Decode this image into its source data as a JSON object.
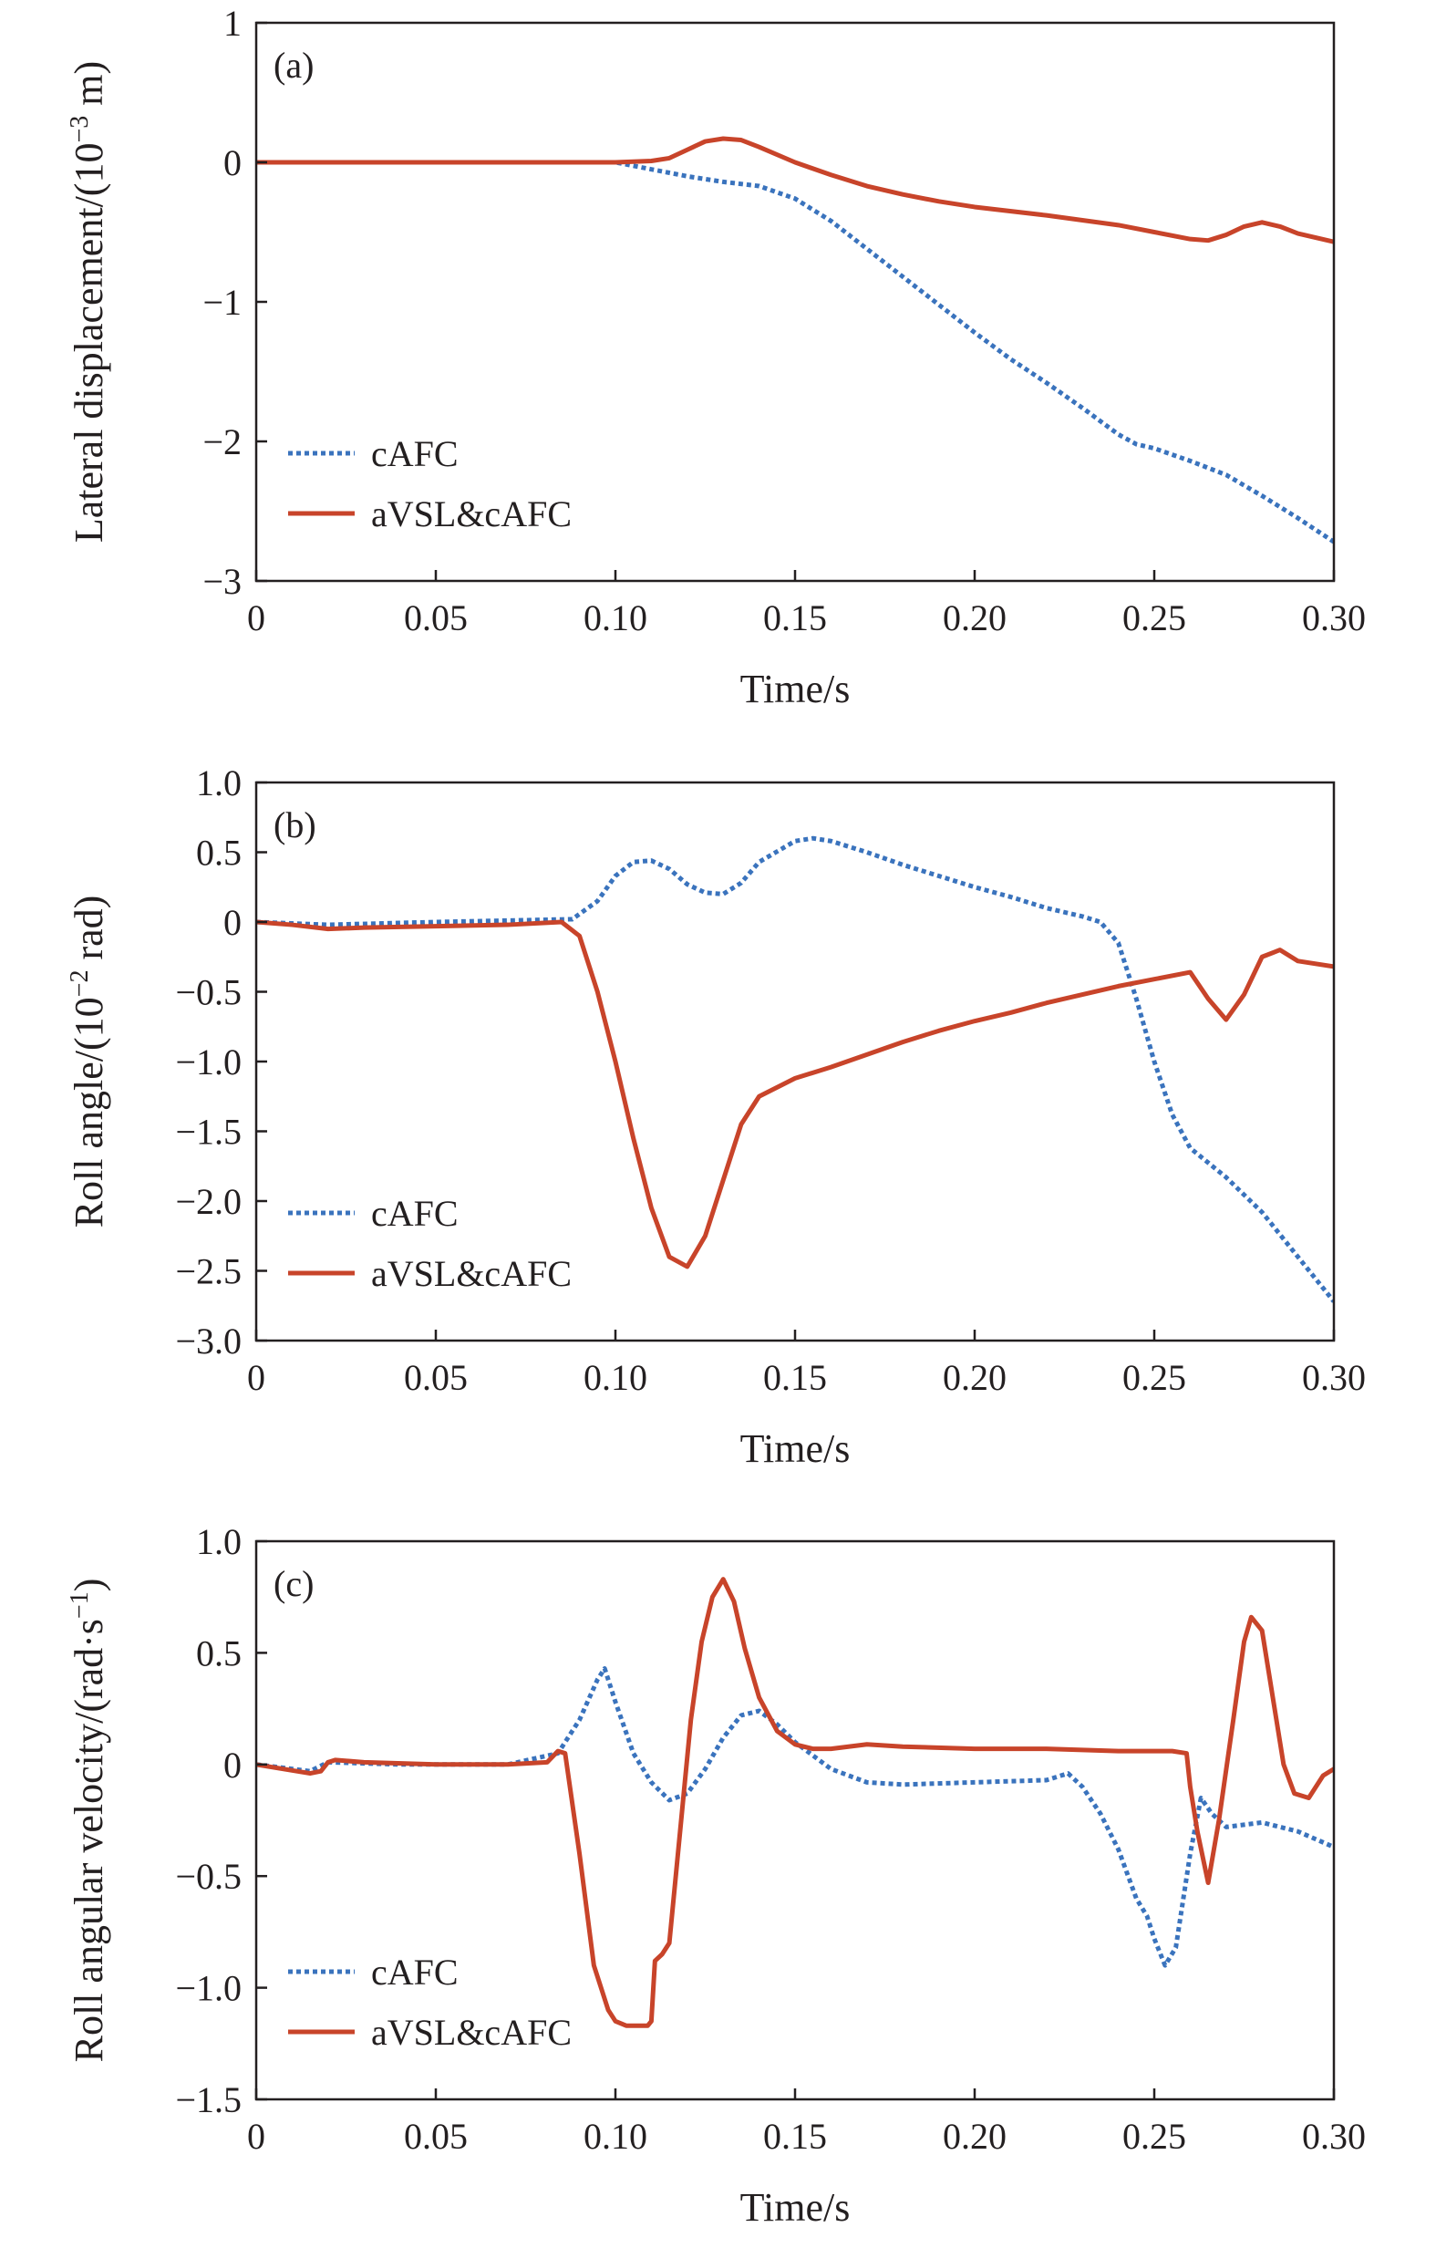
{
  "chart_data": [
    {
      "type": "line",
      "panel_label": "(a)",
      "xlabel": "Time/s",
      "ylabel_main": "Lateral displacement/(10",
      "ylabel_sup": "−3",
      "ylabel_end": " m)",
      "xlim": [
        0,
        0.3
      ],
      "ylim": [
        -3,
        1
      ],
      "xticks": [
        0,
        0.05,
        0.1,
        0.15,
        0.2,
        0.25,
        0.3
      ],
      "xtick_labels": [
        "0",
        "0.05",
        "0.10",
        "0.15",
        "0.20",
        "0.25",
        "0.30"
      ],
      "yticks": [
        -3,
        -2,
        -1,
        0,
        1
      ],
      "ytick_labels": [
        "−3",
        "−2",
        "−1",
        "0",
        "1"
      ],
      "legend_position": "lower-left",
      "series": [
        {
          "name": "cAFC",
          "style": "dotted",
          "color": "#3a73bd",
          "x": [
            0,
            0.05,
            0.1,
            0.11,
            0.12,
            0.13,
            0.14,
            0.15,
            0.16,
            0.17,
            0.18,
            0.19,
            0.2,
            0.21,
            0.22,
            0.23,
            0.24,
            0.245,
            0.25,
            0.26,
            0.27,
            0.28,
            0.29,
            0.3
          ],
          "y": [
            0,
            0,
            0,
            -0.05,
            -0.1,
            -0.14,
            -0.17,
            -0.26,
            -0.42,
            -0.62,
            -0.82,
            -1.02,
            -1.22,
            -1.41,
            -1.58,
            -1.76,
            -1.95,
            -2.02,
            -2.05,
            -2.14,
            -2.24,
            -2.39,
            -2.55,
            -2.72
          ]
        },
        {
          "name": "aVSL&cAFC",
          "style": "solid",
          "color": "#c8442a",
          "x": [
            0,
            0.05,
            0.1,
            0.11,
            0.115,
            0.12,
            0.125,
            0.13,
            0.135,
            0.14,
            0.15,
            0.16,
            0.17,
            0.18,
            0.19,
            0.2,
            0.22,
            0.24,
            0.25,
            0.26,
            0.265,
            0.27,
            0.275,
            0.28,
            0.285,
            0.29,
            0.3
          ],
          "y": [
            0,
            0,
            0,
            0.01,
            0.03,
            0.09,
            0.15,
            0.17,
            0.16,
            0.11,
            0.0,
            -0.09,
            -0.17,
            -0.23,
            -0.28,
            -0.32,
            -0.38,
            -0.45,
            -0.5,
            -0.55,
            -0.56,
            -0.52,
            -0.46,
            -0.43,
            -0.46,
            -0.51,
            -0.57
          ]
        }
      ]
    },
    {
      "type": "line",
      "panel_label": "(b)",
      "xlabel": "Time/s",
      "ylabel_main": "Roll angle/(10",
      "ylabel_sup": "−2",
      "ylabel_end": " rad)",
      "xlim": [
        0,
        0.3
      ],
      "ylim": [
        -3.0,
        1.0
      ],
      "xticks": [
        0,
        0.05,
        0.1,
        0.15,
        0.2,
        0.25,
        0.3
      ],
      "xtick_labels": [
        "0",
        "0.05",
        "0.10",
        "0.15",
        "0.20",
        "0.25",
        "0.30"
      ],
      "yticks": [
        -3.0,
        -2.5,
        -2.0,
        -1.5,
        -1.0,
        -0.5,
        0,
        0.5,
        1.0
      ],
      "ytick_labels": [
        "−3.0",
        "−2.5",
        "−2.0",
        "−1.5",
        "−1.0",
        "−0.5",
        "0",
        "0.5",
        "1.0"
      ],
      "legend_position": "lower-left",
      "series": [
        {
          "name": "cAFC",
          "style": "dotted",
          "color": "#3a73bd",
          "x": [
            0,
            0.02,
            0.05,
            0.088,
            0.095,
            0.1,
            0.105,
            0.11,
            0.115,
            0.12,
            0.125,
            0.13,
            0.135,
            0.14,
            0.15,
            0.155,
            0.16,
            0.17,
            0.18,
            0.19,
            0.2,
            0.21,
            0.22,
            0.23,
            0.235,
            0.24,
            0.245,
            0.25,
            0.255,
            0.26,
            0.27,
            0.28,
            0.29,
            0.3
          ],
          "y": [
            0,
            -0.02,
            0,
            0.02,
            0.15,
            0.33,
            0.43,
            0.44,
            0.38,
            0.27,
            0.21,
            0.2,
            0.28,
            0.43,
            0.58,
            0.6,
            0.58,
            0.5,
            0.41,
            0.33,
            0.25,
            0.18,
            0.1,
            0.04,
            0.0,
            -0.15,
            -0.55,
            -1.0,
            -1.38,
            -1.62,
            -1.83,
            -2.08,
            -2.4,
            -2.72
          ]
        },
        {
          "name": "aVSL&cAFC",
          "style": "solid",
          "color": "#c8442a",
          "x": [
            0,
            0.01,
            0.02,
            0.03,
            0.05,
            0.07,
            0.085,
            0.09,
            0.095,
            0.1,
            0.105,
            0.11,
            0.115,
            0.12,
            0.125,
            0.13,
            0.135,
            0.14,
            0.15,
            0.16,
            0.17,
            0.18,
            0.19,
            0.2,
            0.21,
            0.22,
            0.23,
            0.24,
            0.25,
            0.26,
            0.265,
            0.27,
            0.275,
            0.28,
            0.285,
            0.29,
            0.3
          ],
          "y": [
            0,
            -0.02,
            -0.05,
            -0.04,
            -0.03,
            -0.02,
            0.0,
            -0.1,
            -0.5,
            -1.0,
            -1.55,
            -2.05,
            -2.4,
            -2.47,
            -2.25,
            -1.85,
            -1.45,
            -1.25,
            -1.12,
            -1.04,
            -0.95,
            -0.86,
            -0.78,
            -0.71,
            -0.65,
            -0.58,
            -0.52,
            -0.46,
            -0.41,
            -0.36,
            -0.55,
            -0.7,
            -0.52,
            -0.25,
            -0.2,
            -0.28,
            -0.32
          ]
        }
      ]
    },
    {
      "type": "line",
      "panel_label": "(c)",
      "xlabel": "Time/s",
      "ylabel_main": "Roll angular velocity/(rad·s",
      "ylabel_sup": "−1",
      "ylabel_end": ")",
      "xlim": [
        0,
        0.3
      ],
      "ylim": [
        -1.5,
        1.0
      ],
      "xticks": [
        0,
        0.05,
        0.1,
        0.15,
        0.2,
        0.25,
        0.3
      ],
      "xtick_labels": [
        "0",
        "0.05",
        "0.10",
        "0.15",
        "0.20",
        "0.25",
        "0.30"
      ],
      "yticks": [
        -1.5,
        -1.0,
        -0.5,
        0,
        0.5,
        1.0
      ],
      "ytick_labels": [
        "−1.5",
        "−1.0",
        "−0.5",
        "0",
        "0.5",
        "1.0"
      ],
      "legend_position": "lower-left",
      "series": [
        {
          "name": "cAFC",
          "style": "dotted",
          "color": "#3a73bd",
          "x": [
            0,
            0.015,
            0.02,
            0.04,
            0.07,
            0.084,
            0.09,
            0.095,
            0.097,
            0.1,
            0.105,
            0.11,
            0.115,
            0.12,
            0.125,
            0.13,
            0.135,
            0.14,
            0.145,
            0.15,
            0.16,
            0.17,
            0.18,
            0.2,
            0.22,
            0.226,
            0.23,
            0.235,
            0.24,
            0.245,
            0.248,
            0.25,
            0.253,
            0.256,
            0.26,
            0.263,
            0.266,
            0.27,
            0.28,
            0.29,
            0.3
          ],
          "y": [
            0,
            -0.03,
            0.01,
            0,
            0,
            0.05,
            0.2,
            0.38,
            0.43,
            0.28,
            0.05,
            -0.08,
            -0.16,
            -0.13,
            -0.02,
            0.12,
            0.22,
            0.24,
            0.18,
            0.1,
            -0.02,
            -0.08,
            -0.09,
            -0.08,
            -0.07,
            -0.04,
            -0.1,
            -0.22,
            -0.38,
            -0.6,
            -0.68,
            -0.78,
            -0.9,
            -0.82,
            -0.4,
            -0.15,
            -0.22,
            -0.28,
            -0.26,
            -0.3,
            -0.37
          ]
        },
        {
          "name": "aVSL&cAFC",
          "style": "solid",
          "color": "#c8442a",
          "x": [
            0,
            0.015,
            0.018,
            0.02,
            0.022,
            0.03,
            0.05,
            0.07,
            0.081,
            0.084,
            0.086,
            0.09,
            0.094,
            0.098,
            0.1,
            0.103,
            0.106,
            0.109,
            0.11,
            0.111,
            0.113,
            0.115,
            0.118,
            0.121,
            0.124,
            0.127,
            0.13,
            0.133,
            0.136,
            0.14,
            0.145,
            0.15,
            0.155,
            0.16,
            0.17,
            0.18,
            0.2,
            0.22,
            0.24,
            0.255,
            0.259,
            0.26,
            0.262,
            0.265,
            0.268,
            0.272,
            0.275,
            0.277,
            0.28,
            0.283,
            0.286,
            0.289,
            0.293,
            0.297,
            0.3
          ],
          "y": [
            0,
            -0.04,
            -0.03,
            0.01,
            0.02,
            0.01,
            0,
            0,
            0.01,
            0.06,
            0.05,
            -0.4,
            -0.9,
            -1.1,
            -1.15,
            -1.17,
            -1.17,
            -1.17,
            -1.15,
            -0.88,
            -0.85,
            -0.8,
            -0.3,
            0.2,
            0.55,
            0.75,
            0.83,
            0.73,
            0.52,
            0.3,
            0.15,
            0.09,
            0.07,
            0.07,
            0.09,
            0.08,
            0.07,
            0.07,
            0.06,
            0.06,
            0.05,
            -0.1,
            -0.3,
            -0.53,
            -0.25,
            0.2,
            0.55,
            0.66,
            0.6,
            0.3,
            0.0,
            -0.13,
            -0.15,
            -0.05,
            -0.02
          ]
        }
      ]
    }
  ]
}
